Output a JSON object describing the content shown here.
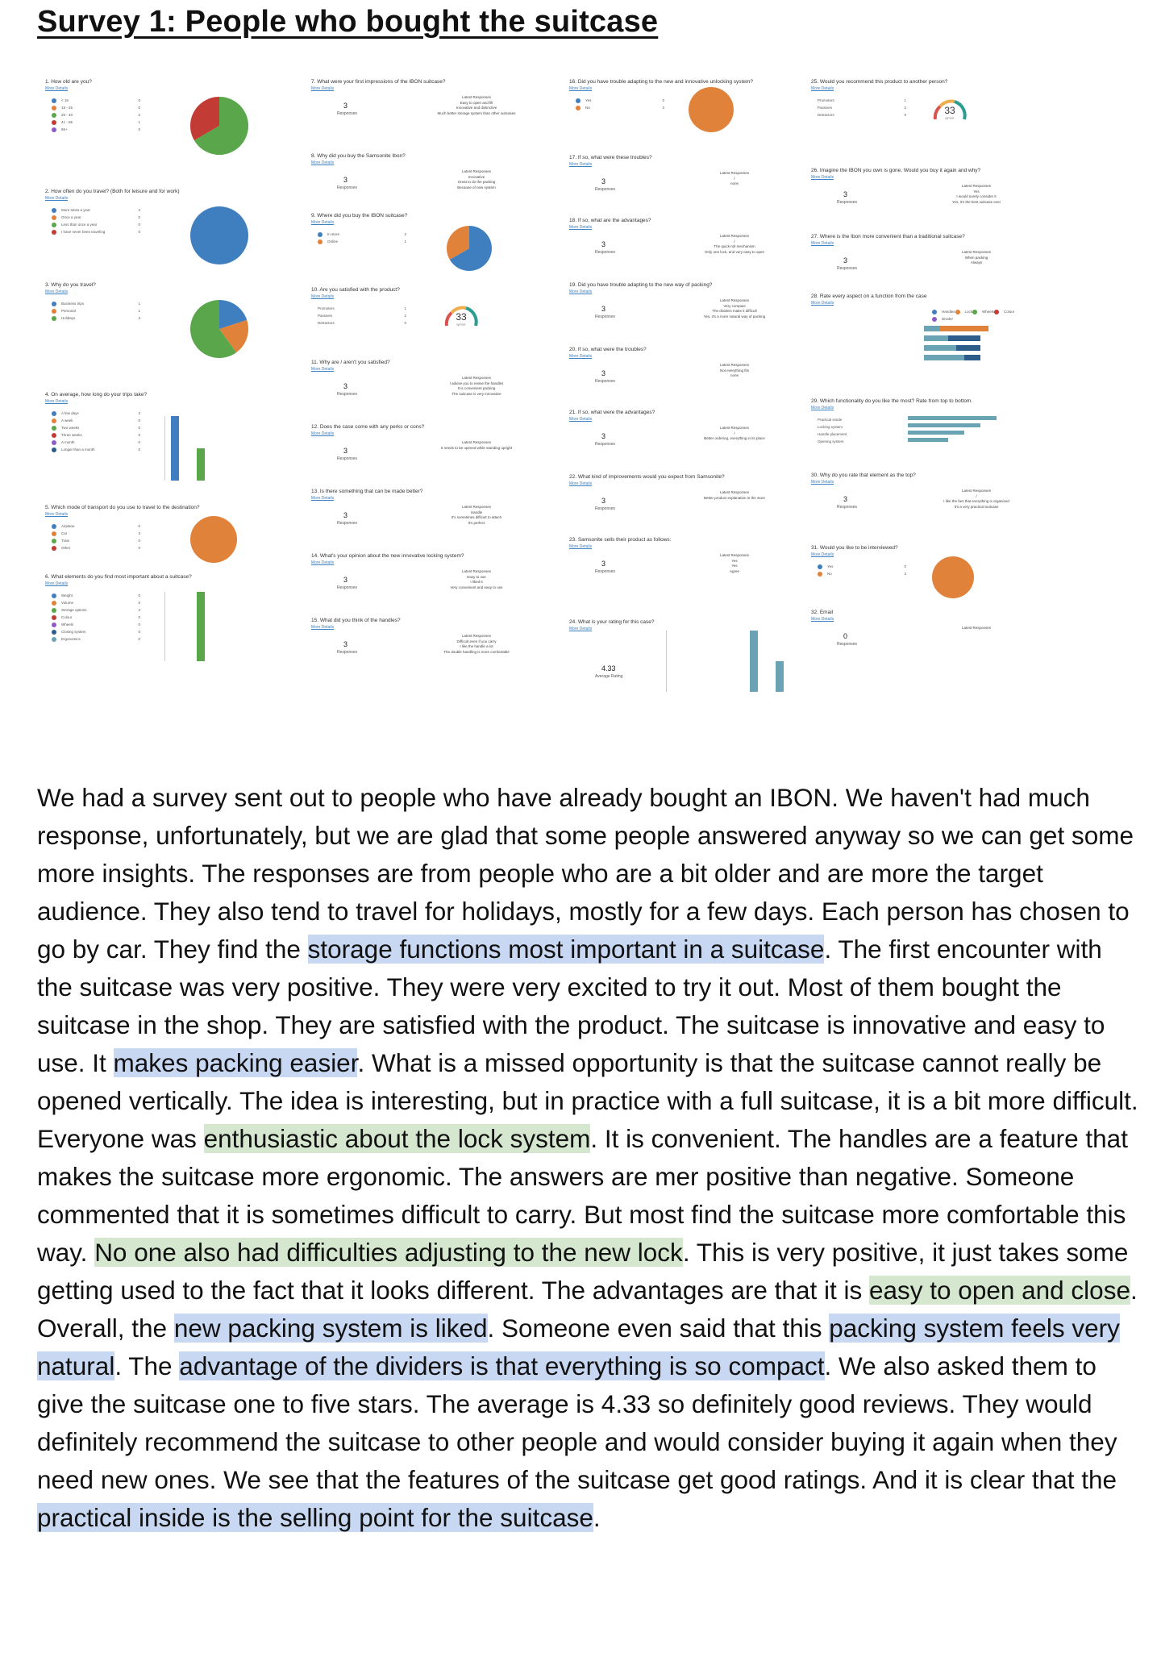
{
  "page": {
    "title": "Survey 1: People who bought the suitcase"
  },
  "colors": {
    "blue": "#3f7fbf",
    "orange": "#e0823a",
    "green": "#5aa64a",
    "red": "#c23b35",
    "purple": "#8e5bc6",
    "teal": "#6aa3b3",
    "navy": "#2e5c8a",
    "highlight_blue": "#c9d8f2",
    "highlight_green": "#d5e8cf"
  },
  "survey": {
    "more_details": "More Details",
    "responses_label": "Responses",
    "latest_label": "Latest Responses",
    "nps_label": "NPS®",
    "col1": [
      {
        "q": "1. How old are you?",
        "legend": [
          {
            "label": "< 18",
            "count": "0",
            "color": "#3f7fbf"
          },
          {
            "label": "18 - 25",
            "count": "0",
            "color": "#e0823a"
          },
          {
            "label": "26 - 40",
            "count": "2",
            "color": "#5aa64a"
          },
          {
            "label": "41 - 65",
            "count": "1",
            "color": "#c23b35"
          },
          {
            "label": "65+",
            "count": "0",
            "color": "#8e5bc6"
          }
        ]
      },
      {
        "q": "2. How often do you travel? (Both for leisure and for work)",
        "legend": [
          {
            "label": "More times a year",
            "count": "3",
            "color": "#3f7fbf"
          },
          {
            "label": "Once a year",
            "count": "0",
            "color": "#e0823a"
          },
          {
            "label": "Less than once a year",
            "count": "0",
            "color": "#5aa64a"
          },
          {
            "label": "I have never been traveling",
            "count": "0",
            "color": "#c23b35"
          }
        ]
      },
      {
        "q": "3. Why do you travel?",
        "legend": [
          {
            "label": "Business trips",
            "count": "1",
            "color": "#3f7fbf"
          },
          {
            "label": "Personal",
            "count": "1",
            "color": "#e0823a"
          },
          {
            "label": "Holidays",
            "count": "3",
            "color": "#5aa64a"
          }
        ]
      },
      {
        "q": "4. On average, how long do your trips take?",
        "legend": [
          {
            "label": "A few days",
            "count": "3",
            "color": "#3f7fbf"
          },
          {
            "label": "A week",
            "count": "0",
            "color": "#e0823a"
          },
          {
            "label": "Two weeks",
            "count": "0",
            "color": "#5aa64a"
          },
          {
            "label": "Three weeks",
            "count": "0",
            "color": "#c23b35"
          },
          {
            "label": "A month",
            "count": "0",
            "color": "#8e5bc6"
          },
          {
            "label": "Longer than a month",
            "count": "0",
            "color": "#2e5c8a"
          }
        ]
      },
      {
        "q": "5. Which mode of transport do you use to travel to the destination?",
        "legend": [
          {
            "label": "Airplane",
            "count": "0",
            "color": "#3f7fbf"
          },
          {
            "label": "Car",
            "count": "3",
            "color": "#e0823a"
          },
          {
            "label": "Train",
            "count": "0",
            "color": "#5aa64a"
          },
          {
            "label": "Other",
            "count": "0",
            "color": "#c23b35"
          }
        ]
      },
      {
        "q": "6. What elements do you find most important about a suitcase?",
        "legend": [
          {
            "label": "Weight",
            "count": "0",
            "color": "#3f7fbf"
          },
          {
            "label": "Volume",
            "count": "0",
            "color": "#e0823a"
          },
          {
            "label": "Storage options",
            "count": "3",
            "color": "#5aa64a"
          },
          {
            "label": "Colour",
            "count": "0",
            "color": "#c23b35"
          },
          {
            "label": "Wheels",
            "count": "0",
            "color": "#8e5bc6"
          },
          {
            "label": "Closing system",
            "count": "0",
            "color": "#2e5c8a"
          },
          {
            "label": "Ergonomics",
            "count": "0",
            "color": "#6aa3b3"
          }
        ]
      }
    ],
    "col2": [
      {
        "q": "7. What were your first impressions of the IBON suitcase?",
        "num": "3",
        "latest": [
          "Easy to open and fill",
          "Innovative and distinctive",
          "Much better storage system than other suitcases"
        ]
      },
      {
        "q": "8. Why did you buy the Samsonite Ibon?",
        "num": "3",
        "latest": [
          "Innovative",
          "Great to do the packing",
          "Because of new system"
        ]
      },
      {
        "q": "9. Where did you buy the IBON suitcase?",
        "legend": [
          {
            "label": "In store",
            "count": "2",
            "color": "#3f7fbf"
          },
          {
            "label": "Online",
            "count": "1",
            "color": "#e0823a"
          }
        ]
      },
      {
        "q": "10. Are you satisfied with the product?",
        "nps": "33",
        "rows": [
          {
            "label": "Promoters",
            "count": "1"
          },
          {
            "label": "Passives",
            "count": "2"
          },
          {
            "label": "Detractors",
            "count": "0"
          }
        ]
      },
      {
        "q": "11. Why are / aren't you satisfied?",
        "num": "3",
        "latest": [
          "I advise you to revise the handles",
          "It is convenient packing",
          "The suitcase is very innovative"
        ]
      },
      {
        "q": "12. Does the case come with any perks or cons?",
        "num": "3",
        "latest": [
          "It needs to be opened while standing upright"
        ]
      },
      {
        "q": "13. Is there something that can be made better?",
        "num": "3",
        "latest": [
          "Handle",
          "It's sometimes difficult to attach",
          "It's perfect"
        ]
      },
      {
        "q": "14. What's your opinion about the new innovative locking system?",
        "num": "3",
        "latest": [
          "Easy to use",
          "I liked it",
          "Very convenient and easy to use"
        ]
      },
      {
        "q": "15. What did you think of the handles?",
        "num": "3",
        "latest": [
          "Difficult even if you carry",
          "I like the handle a lot",
          "The double handling is more comfortable"
        ]
      }
    ],
    "col3": [
      {
        "q": "16. Did you have trouble adapting to the new and innovative unlocking system?",
        "legend": [
          {
            "label": "Yes",
            "count": "0",
            "color": "#3f7fbf"
          },
          {
            "label": "No",
            "count": "3",
            "color": "#e0823a"
          }
        ]
      },
      {
        "q": "17. If so, what were these troubles?",
        "num": "3",
        "latest": [
          "/",
          "none"
        ]
      },
      {
        "q": "18. If so, what are the advantages?",
        "num": "3",
        "latest": [
          "/",
          "The quick-roll mechanism",
          "Only one lock, and very easy to open"
        ]
      },
      {
        "q": "19. Did you have trouble adapting to the new way of packing?",
        "num": "3",
        "latest": [
          "Very compact",
          "The dividers make it difficult",
          "Yes, it's a more natural way of packing"
        ]
      },
      {
        "q": "20. If so, what were the troubles?",
        "num": "3",
        "latest": [
          "Not everything fits",
          "none"
        ]
      },
      {
        "q": "21. If so, what were the advantages?",
        "num": "3",
        "latest": [
          "/",
          "Better ordering, everything in its place"
        ]
      },
      {
        "q": "22. What kind of improvements would you expect from Samsonite?",
        "num": "3",
        "latest": [
          "Better product explanation in the store"
        ]
      },
      {
        "q": "23. Samsonite sells their product as follows:",
        "num": "3",
        "latest": [
          "Yes",
          "Yes",
          "Agree"
        ]
      },
      {
        "q": "24. What is your rating for this case?",
        "rating": "4.33",
        "rating_label": "Average Rating"
      }
    ],
    "col4": [
      {
        "q": "25. Would you recommend this product to another person?",
        "nps": "33",
        "rows": [
          {
            "label": "Promoters",
            "count": "1"
          },
          {
            "label": "Passives",
            "count": "2"
          },
          {
            "label": "Detractors",
            "count": "0"
          }
        ]
      },
      {
        "q": "26. Imagine the IBON you own is gone. Would you buy it again and why?",
        "num": "3",
        "latest": [
          "Yes",
          "I would surely consider it",
          "Yes, it's the best suitcase ever"
        ]
      },
      {
        "q": "27. Where is the Ibon more convenient than a traditional suitcase?",
        "num": "3",
        "latest": [
          "When packing",
          "Always"
        ]
      },
      {
        "q": "28. Rate every aspect on a function from the case",
        "legend": [
          {
            "label": "Handles",
            "count": "",
            "color": "#3f7fbf"
          },
          {
            "label": "Lock",
            "count": "",
            "color": "#e0823a"
          },
          {
            "label": "Wheels",
            "count": "",
            "color": "#5aa64a"
          },
          {
            "label": "Colour",
            "count": "",
            "color": "#c23b35"
          },
          {
            "label": "Divider",
            "count": "",
            "color": "#8e5bc6"
          }
        ]
      },
      {
        "q": "29. Which functionality do you like the most? Rate from top to bottom.",
        "items": [
          "Practical inside",
          "Locking system",
          "Handle placement",
          "Opening system"
        ]
      },
      {
        "q": "30. Why do you rate that element as the top?",
        "num": "3",
        "latest": [
          "/",
          "I like the fact that everything is organized",
          "It's a very practical suitcase"
        ]
      },
      {
        "q": "31. Would you like to be interviewed?",
        "legend": [
          {
            "label": "Yes",
            "count": "0",
            "color": "#3f7fbf"
          },
          {
            "label": "No",
            "count": "3",
            "color": "#e0823a"
          }
        ]
      },
      {
        "q": "32. Email",
        "num": "0"
      }
    ]
  },
  "body": {
    "segments": [
      {
        "text": "We had a survey sent out to people who have already bought an IBON. We haven't had much response, unfortunately, but we are glad that some people answered anyway so we can get some more insights. The responses are from people who are a bit older and are more the target audience. They also tend to travel for holidays, mostly for a few days. Each person has chosen to go by car. They find the ",
        "hl": ""
      },
      {
        "text": "storage functions most important in a suitcase",
        "hl": "blue"
      },
      {
        "text": ". The first encounter with the suitcase was very positive. They were very excited to try it out. Most of them bought the suitcase in the shop. They are satisfied with the product. The suitcase is innovative and easy to use. It ",
        "hl": ""
      },
      {
        "text": "makes packing easier",
        "hl": "blue"
      },
      {
        "text": ". What is a missed opportunity is that the suitcase cannot really be opened vertically. The idea is interesting, but in practice with a full suitcase, it is a bit more difficult. Everyone was ",
        "hl": ""
      },
      {
        "text": "enthusiastic about the lock system",
        "hl": "green"
      },
      {
        "text": ". It is convenient. The handles are a feature that makes the suitcase more ergonomic. The answers are mer positive than negative. Someone commented that it is sometimes difficult to carry. But most find the suitcase more comfortable this way. ",
        "hl": ""
      },
      {
        "text": "No one also had difficulties adjusting to the new lock",
        "hl": "green"
      },
      {
        "text": ". This is very positive, it just takes some getting used to the fact that it looks different. The advantages are that it is ",
        "hl": ""
      },
      {
        "text": "easy to open and close",
        "hl": "green"
      },
      {
        "text": ". Overall, the ",
        "hl": ""
      },
      {
        "text": "new packing system is liked",
        "hl": "blue"
      },
      {
        "text": ". Someone even said that this ",
        "hl": ""
      },
      {
        "text": "packing system feels very natural",
        "hl": "blue"
      },
      {
        "text": ". The ",
        "hl": ""
      },
      {
        "text": "advantage of the dividers is that everything is so compact",
        "hl": "blue"
      },
      {
        "text": ". We also asked them to give the suitcase one to five stars. The average is 4.33 so definitely good reviews. They would definitely recommend the suitcase to other people and would consider buying it again when they need new ones. We see that the features of the suitcase get good ratings. And it is clear that the ",
        "hl": ""
      },
      {
        "text": "practical inside is the selling point for the suitcase",
        "hl": "blue"
      },
      {
        "text": ".",
        "hl": ""
      }
    ]
  }
}
